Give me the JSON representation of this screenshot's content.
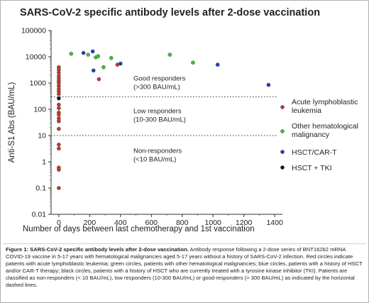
{
  "chart_data": {
    "type": "scatter",
    "title": "SARS-CoV-2 specific antibody levels after 2-dose vaccination",
    "xlabel": "Number of days between last chemotherapy and 1st vaccination",
    "ylabel": "Anti-S1 Abs (BAU/mL)",
    "xlim": [
      -50,
      1450
    ],
    "ylim": [
      0.01,
      100000
    ],
    "yscale": "log",
    "x_ticks": [
      0,
      200,
      400,
      600,
      800,
      1000,
      1200,
      1400
    ],
    "y_ticks": [
      {
        "value": 0.01,
        "label": "0.01"
      },
      {
        "value": 0.1,
        "label": "0.1"
      },
      {
        "value": 1,
        "label": "1"
      },
      {
        "value": 10,
        "label": "10"
      },
      {
        "value": 100,
        "label": "100"
      },
      {
        "value": 1000,
        "label": "1000"
      },
      {
        "value": 10000,
        "label": "10000"
      },
      {
        "value": 100000,
        "label": "100000"
      }
    ],
    "thresholds": [
      300,
      10
    ],
    "regions": [
      {
        "label": "Good responders",
        "sub": "(>300 BAU/mL)",
        "y": 1250
      },
      {
        "label": "Low responders",
        "sub": "(10-300 BAU/mL)",
        "y": 70
      },
      {
        "label": "Non-responders",
        "sub": "(<10 BAU/mL)",
        "y": 2.2
      }
    ],
    "legend_position": "right",
    "series": [
      {
        "name": "Acute lymphoblastic leukemia",
        "color": "#c0392b",
        "points": [
          {
            "x": 0,
            "y": 4000
          },
          {
            "x": 0,
            "y": 3200
          },
          {
            "x": 0,
            "y": 2500
          },
          {
            "x": 0,
            "y": 1900
          },
          {
            "x": 0,
            "y": 1500
          },
          {
            "x": 0,
            "y": 1200
          },
          {
            "x": 0,
            "y": 1000
          },
          {
            "x": 0,
            "y": 780
          },
          {
            "x": 0,
            "y": 600
          },
          {
            "x": 0,
            "y": 480
          },
          {
            "x": 0,
            "y": 380
          },
          {
            "x": 0,
            "y": 150
          },
          {
            "x": 0,
            "y": 110
          },
          {
            "x": 0,
            "y": 75
          },
          {
            "x": 0,
            "y": 62
          },
          {
            "x": 0,
            "y": 45
          },
          {
            "x": 0,
            "y": 35
          },
          {
            "x": 0,
            "y": 18
          },
          {
            "x": 0,
            "y": 4.5
          },
          {
            "x": 0,
            "y": 3.2
          },
          {
            "x": 0,
            "y": 0.6
          },
          {
            "x": 0,
            "y": 0.5
          },
          {
            "x": 0,
            "y": 0.1
          },
          {
            "x": 260,
            "y": 1400
          },
          {
            "x": 380,
            "y": 5000
          }
        ]
      },
      {
        "name": "Other hematological malignancy",
        "color": "#3cbf3c",
        "points": [
          {
            "x": 80,
            "y": 13000
          },
          {
            "x": 190,
            "y": 12000
          },
          {
            "x": 240,
            "y": 9500
          },
          {
            "x": 255,
            "y": 10500
          },
          {
            "x": 290,
            "y": 4000
          },
          {
            "x": 340,
            "y": 9000
          },
          {
            "x": 720,
            "y": 12000
          },
          {
            "x": 870,
            "y": 6000
          }
        ]
      },
      {
        "name": "HSCT/CAR-T",
        "color": "#1f3fbf",
        "points": [
          {
            "x": 160,
            "y": 14000
          },
          {
            "x": 220,
            "y": 16000
          },
          {
            "x": 225,
            "y": 3000
          },
          {
            "x": 400,
            "y": 5500
          },
          {
            "x": 1030,
            "y": 5000
          },
          {
            "x": 1360,
            "y": 850
          }
        ]
      },
      {
        "name": "HSCT + TKI",
        "color": "#111111",
        "points": [
          {
            "x": 0,
            "y": 260
          }
        ]
      }
    ]
  },
  "caption": {
    "heading": "Figure 1: SARS-CoV-2 specific antibody levels after 2-dose vaccination.",
    "body": " Antibody response following a 2-dose series of BNT162b2 mRNA COVID-19 vaccine in 5-17 years with hematological malignancies aged 5-17 years without a history of SARS-CoV-2 infection. Red circles indicate patients with acute lymphoblastic leukemia; green circles, patients with other hematological malignancies; blue circles, patients with a history of HSCT and/or CAR-T therapy; black circles, patients with a history of HSCT who are currently treated with a tyrosine kinase inhibitor (TKI). Patients are classified as non-responders (< 10 BAU/mL), low responders (10-300 BAU/mL) or good-responders (> 300 BAU/mL) as indicated by the horizontal dashed lines."
  }
}
